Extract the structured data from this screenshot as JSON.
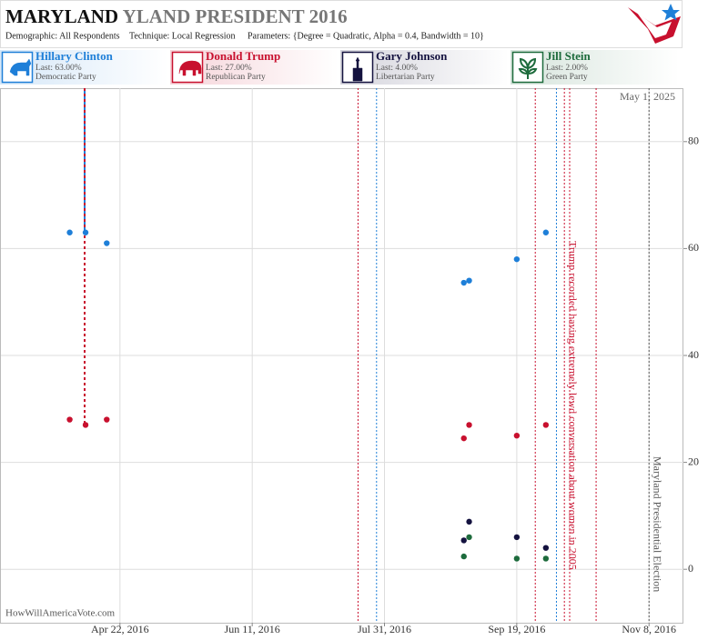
{
  "chart_data": {
    "type": "scatter",
    "title": "MARYLAND",
    "title_rest": "YLAND PRESIDENT 2016",
    "demographic": "Demographic: All Respondents",
    "technique": "Technique: Local Regression",
    "parameters": "Parameters: {Degree = Quadratic, Alpha = 0.4, Bandwidth = 10}",
    "date_stamp": "May 1, 2025",
    "source": "HowWillAmericaVote.com",
    "xlim": [
      "2016-03-08",
      "2016-11-21"
    ],
    "xticks": [
      {
        "value": "2016-04-22",
        "label": "Apr 22, 2016"
      },
      {
        "value": "2016-06-11",
        "label": "Jun 11, 2016"
      },
      {
        "value": "2016-07-31",
        "label": "Jul 31, 2016"
      },
      {
        "value": "2016-09-19",
        "label": "Sep 19, 2016"
      },
      {
        "value": "2016-11-08",
        "label": "Nov 8, 2016"
      }
    ],
    "ylim": [
      -10,
      90
    ],
    "yticks": [
      0,
      20,
      40,
      60,
      80
    ],
    "grid": true,
    "series": [
      {
        "name": "Hillary Clinton",
        "note": "Last: 63.00%",
        "party": "Democratic Party",
        "color": "#1e7fd8",
        "x": [
          "2016-04-03",
          "2016-04-09",
          "2016-04-17",
          "2016-08-30",
          "2016-09-01",
          "2016-09-19",
          "2016-09-30"
        ],
        "values": [
          63,
          63,
          61,
          53.6,
          54,
          58,
          63
        ]
      },
      {
        "name": "Donald Trump",
        "note": "Last: 27.00%",
        "party": "Republican Party",
        "color": "#c8102e",
        "x": [
          "2016-04-03",
          "2016-04-09",
          "2016-04-17",
          "2016-08-30",
          "2016-09-01",
          "2016-09-19",
          "2016-09-30"
        ],
        "values": [
          28,
          27,
          28,
          24.5,
          27,
          25,
          27
        ]
      },
      {
        "name": "Gary Johnson",
        "note": "Last: 4.00%",
        "party": "Libertarian Party",
        "color": "#14123f",
        "x": [
          "2016-08-30",
          "2016-09-01",
          "2016-09-19",
          "2016-09-30"
        ],
        "values": [
          5.4,
          8.9,
          6,
          4
        ]
      },
      {
        "name": "Jill Stein",
        "note": "Last: 2.00%",
        "party": "Green Party",
        "color": "#1d6b3c",
        "x": [
          "2016-08-30",
          "2016-09-01",
          "2016-09-19",
          "2016-09-30"
        ],
        "values": [
          2.4,
          6,
          2,
          2
        ]
      }
    ],
    "events": [
      {
        "x": "2016-07-21",
        "color": "#c8102e"
      },
      {
        "x": "2016-07-28",
        "color": "#1e7fd8"
      },
      {
        "x": "2016-09-26",
        "color": "#c8102e"
      },
      {
        "x": "2016-10-04",
        "color": "#1e7fd8"
      },
      {
        "x": "2016-10-07",
        "color": "#c8102e",
        "label": "Trump recorded having extremely lewd conversation about women in 2005"
      },
      {
        "x": "2016-10-09",
        "color": "#c8102e"
      },
      {
        "x": "2016-10-19",
        "color": "#c8102e"
      },
      {
        "x": "2016-11-08",
        "color": "#555555",
        "label": "Maryland Presidential Election"
      }
    ]
  }
}
